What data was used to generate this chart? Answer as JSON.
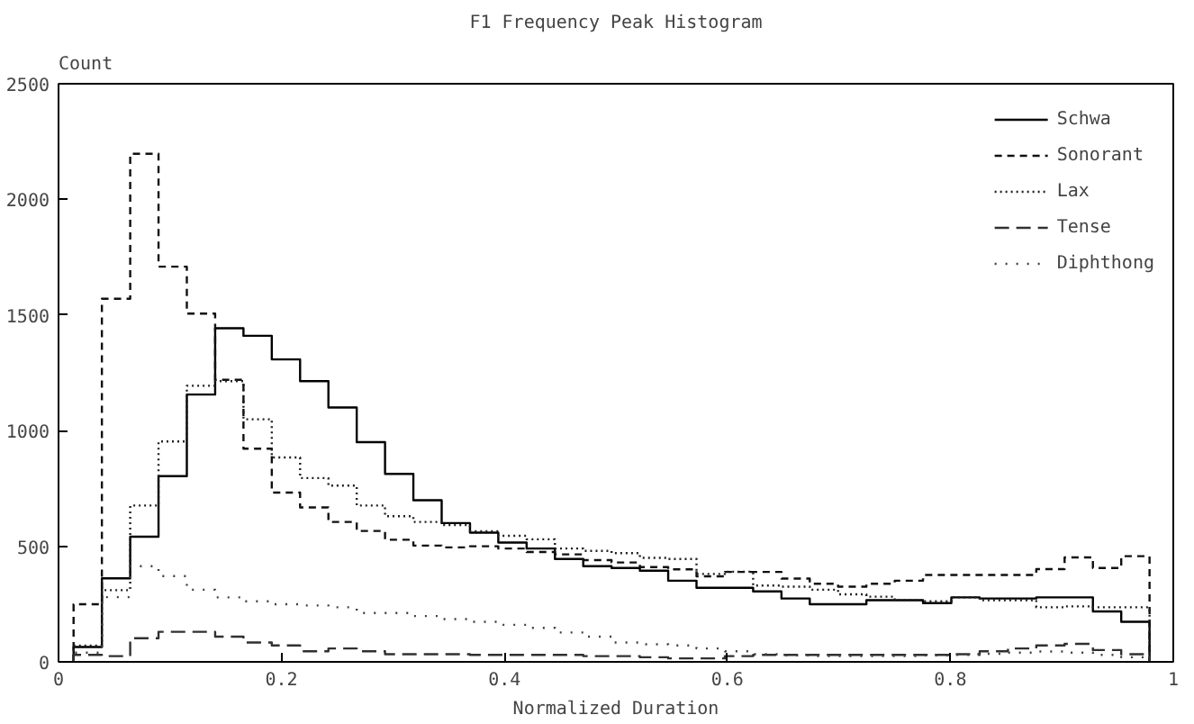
{
  "chart_data": {
    "type": "histogram",
    "title": "F1 Frequency Peak Histogram",
    "xlabel": "Normalized Duration",
    "ylabel": "Count",
    "bins": [
      0.0135,
      0.0389,
      0.0643,
      0.0897,
      0.1151,
      0.1405,
      0.1659,
      0.1913,
      0.2167,
      0.2421,
      0.2675,
      0.2929,
      0.3183,
      0.3437,
      0.3691,
      0.3945,
      0.4199,
      0.4453,
      0.4707,
      0.4961,
      0.5215,
      0.5469,
      0.5723,
      0.5977,
      0.6231,
      0.6485,
      0.6739,
      0.6993,
      0.7247,
      0.7501,
      0.7755,
      0.8009,
      0.8263,
      0.8517,
      0.8771,
      0.9025,
      0.9279,
      0.9533,
      0.9787
    ],
    "series": [
      {
        "name": "Schwa",
        "color": "#000000",
        "line_style": "solid",
        "values": [
          64,
          361,
          541,
          803,
          1156,
          1443,
          1410,
          1308,
          1214,
          1100,
          950,
          813,
          699,
          600,
          559,
          516,
          490,
          445,
          414,
          406,
          394,
          351,
          320,
          320,
          305,
          274,
          249,
          249,
          267,
          267,
          254,
          279,
          274,
          274,
          279,
          279,
          218,
          173
        ]
      },
      {
        "name": "Sonorant",
        "color": "#101010",
        "line_style": "dashed",
        "values": [
          249,
          1570,
          2197,
          1709,
          1506,
          1220,
          922,
          732,
          668,
          605,
          566,
          528,
          503,
          495,
          500,
          490,
          475,
          465,
          440,
          430,
          410,
          400,
          370,
          389,
          389,
          360,
          338,
          325,
          338,
          351,
          376,
          376,
          376,
          376,
          401,
          452,
          406,
          457
        ]
      },
      {
        "name": "Lax",
        "color": "#202020",
        "line_style": "dotted",
        "values": [
          70,
          310,
          676,
          953,
          1194,
          1214,
          1049,
          884,
          795,
          762,
          676,
          630,
          605,
          592,
          565,
          545,
          530,
          490,
          480,
          470,
          450,
          445,
          380,
          390,
          330,
          325,
          312,
          292,
          282,
          267,
          262,
          279,
          267,
          267,
          236,
          240,
          236,
          236
        ]
      },
      {
        "name": "Tense",
        "color": "#303030",
        "line_style": "dashed",
        "values": [
          30,
          25,
          102,
          130,
          130,
          109,
          84,
          71,
          46,
          58,
          46,
          33,
          33,
          33,
          30,
          30,
          30,
          30,
          25,
          25,
          20,
          15,
          15,
          25,
          30,
          30,
          30,
          30,
          30,
          30,
          30,
          33,
          46,
          58,
          71,
          78,
          51,
          33
        ]
      },
      {
        "name": "Diphthong",
        "color": "#404040",
        "line_style": "dotted",
        "values": [
          40,
          280,
          414,
          371,
          312,
          279,
          262,
          249,
          244,
          236,
          211,
          211,
          198,
          185,
          173,
          160,
          147,
          127,
          109,
          84,
          76,
          71,
          58,
          46,
          33,
          28,
          25,
          25,
          25,
          25,
          28,
          30,
          35,
          40,
          45,
          40,
          30,
          20
        ]
      }
    ],
    "xlim": [
      0,
      1
    ],
    "xticks": [
      0,
      0.2,
      0.4,
      0.6,
      0.8,
      1
    ],
    "ylim": [
      0,
      2500
    ],
    "yticks": [
      0,
      500,
      1000,
      1500,
      2000,
      2500
    ],
    "legend": "top right"
  }
}
